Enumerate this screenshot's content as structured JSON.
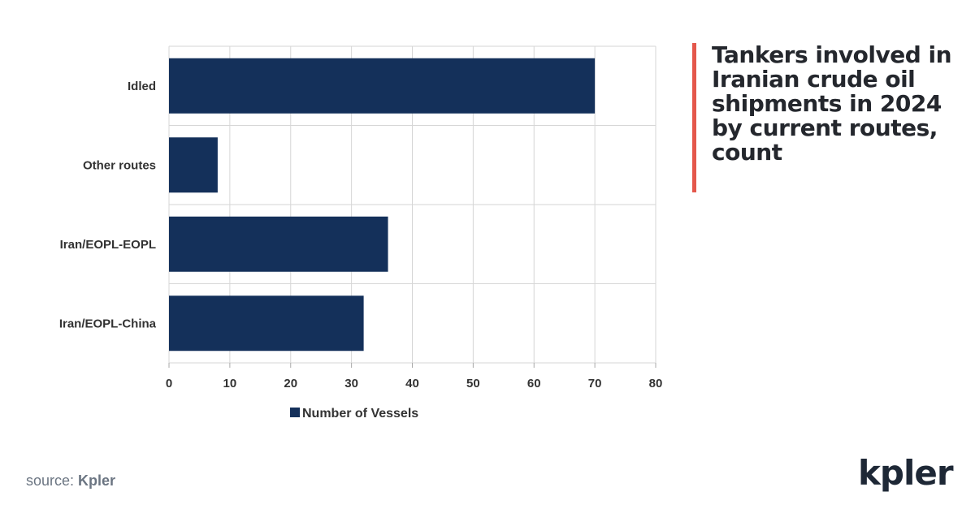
{
  "title": "Tankers involved in Iranian crude oil shipments in 2024 by current routes, count",
  "source": {
    "prefix": "source:",
    "name": "Kpler"
  },
  "logo": "kpler",
  "colors": {
    "bar": "#14305a",
    "accent": "#e4574b",
    "grid": "#d6d6d6"
  },
  "chart_data": {
    "type": "bar",
    "orientation": "horizontal",
    "categories": [
      "Idled",
      "Other routes",
      "Iran/EOPL-EOPL",
      "Iran/EOPL-China"
    ],
    "series": [
      {
        "name": "Number of Vessels",
        "values": [
          70,
          8,
          36,
          32
        ]
      }
    ],
    "xlim": [
      0,
      80
    ],
    "xticks": [
      0,
      10,
      20,
      30,
      40,
      50,
      60,
      70,
      80
    ],
    "grid": true,
    "legend": "bottom"
  }
}
